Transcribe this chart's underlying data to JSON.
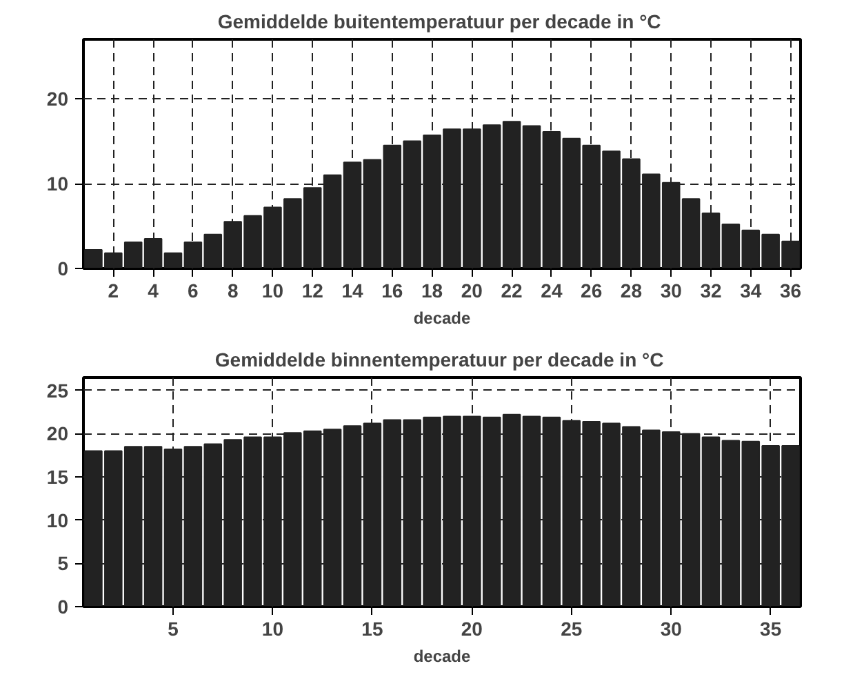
{
  "chart_data": [
    {
      "type": "bar",
      "title": "Gemiddelde buitentemperatuur  per decade in °C",
      "xlabel": "decade",
      "x": [
        1,
        2,
        3,
        4,
        5,
        6,
        7,
        8,
        9,
        10,
        11,
        12,
        13,
        14,
        15,
        16,
        17,
        18,
        19,
        20,
        21,
        22,
        23,
        24,
        25,
        26,
        27,
        28,
        29,
        30,
        31,
        32,
        33,
        34,
        35,
        36
      ],
      "values": [
        2.2,
        1.8,
        3.1,
        3.5,
        1.8,
        3.1,
        4.0,
        5.5,
        6.2,
        7.2,
        8.2,
        9.5,
        11.0,
        12.5,
        12.8,
        14.5,
        15.0,
        15.7,
        16.4,
        16.4,
        16.9,
        17.3,
        16.8,
        16.1,
        15.3,
        14.5,
        13.8,
        12.9,
        11.1,
        10.1,
        8.2,
        6.5,
        5.2,
        4.5,
        4.0,
        3.2
      ],
      "color": "#222222",
      "xlim": [
        0.5,
        36.5
      ],
      "xticks": [
        2,
        4,
        6,
        8,
        10,
        12,
        14,
        16,
        18,
        20,
        22,
        24,
        26,
        28,
        30,
        32,
        34,
        36
      ],
      "ylim": [
        0,
        27
      ],
      "yticks": [
        0,
        10,
        20
      ],
      "grid": true
    },
    {
      "type": "bar",
      "title": "Gemiddelde binnentemperatuur  per decade in °C",
      "xlabel": "decade",
      "x": [
        1,
        2,
        3,
        4,
        5,
        6,
        7,
        8,
        9,
        10,
        11,
        12,
        13,
        14,
        15,
        16,
        17,
        18,
        19,
        20,
        21,
        22,
        23,
        24,
        25,
        26,
        27,
        28,
        29,
        30,
        31,
        32,
        33,
        34,
        35,
        36
      ],
      "values": [
        18.0,
        18.0,
        18.5,
        18.5,
        18.2,
        18.5,
        18.8,
        19.3,
        19.6,
        19.6,
        20.1,
        20.3,
        20.5,
        20.9,
        21.2,
        21.6,
        21.6,
        21.9,
        22.0,
        22.0,
        21.9,
        22.2,
        22.0,
        21.9,
        21.5,
        21.4,
        21.2,
        20.8,
        20.4,
        20.2,
        20.0,
        19.6,
        19.2,
        19.1,
        18.6,
        18.6
      ],
      "color": "#222222",
      "xlim": [
        0.5,
        36.5
      ],
      "xticks": [
        5,
        10,
        15,
        20,
        25,
        30,
        35
      ],
      "ylim": [
        0,
        26.5
      ],
      "yticks": [
        0,
        5,
        10,
        15,
        20,
        25
      ],
      "grid": true
    }
  ]
}
